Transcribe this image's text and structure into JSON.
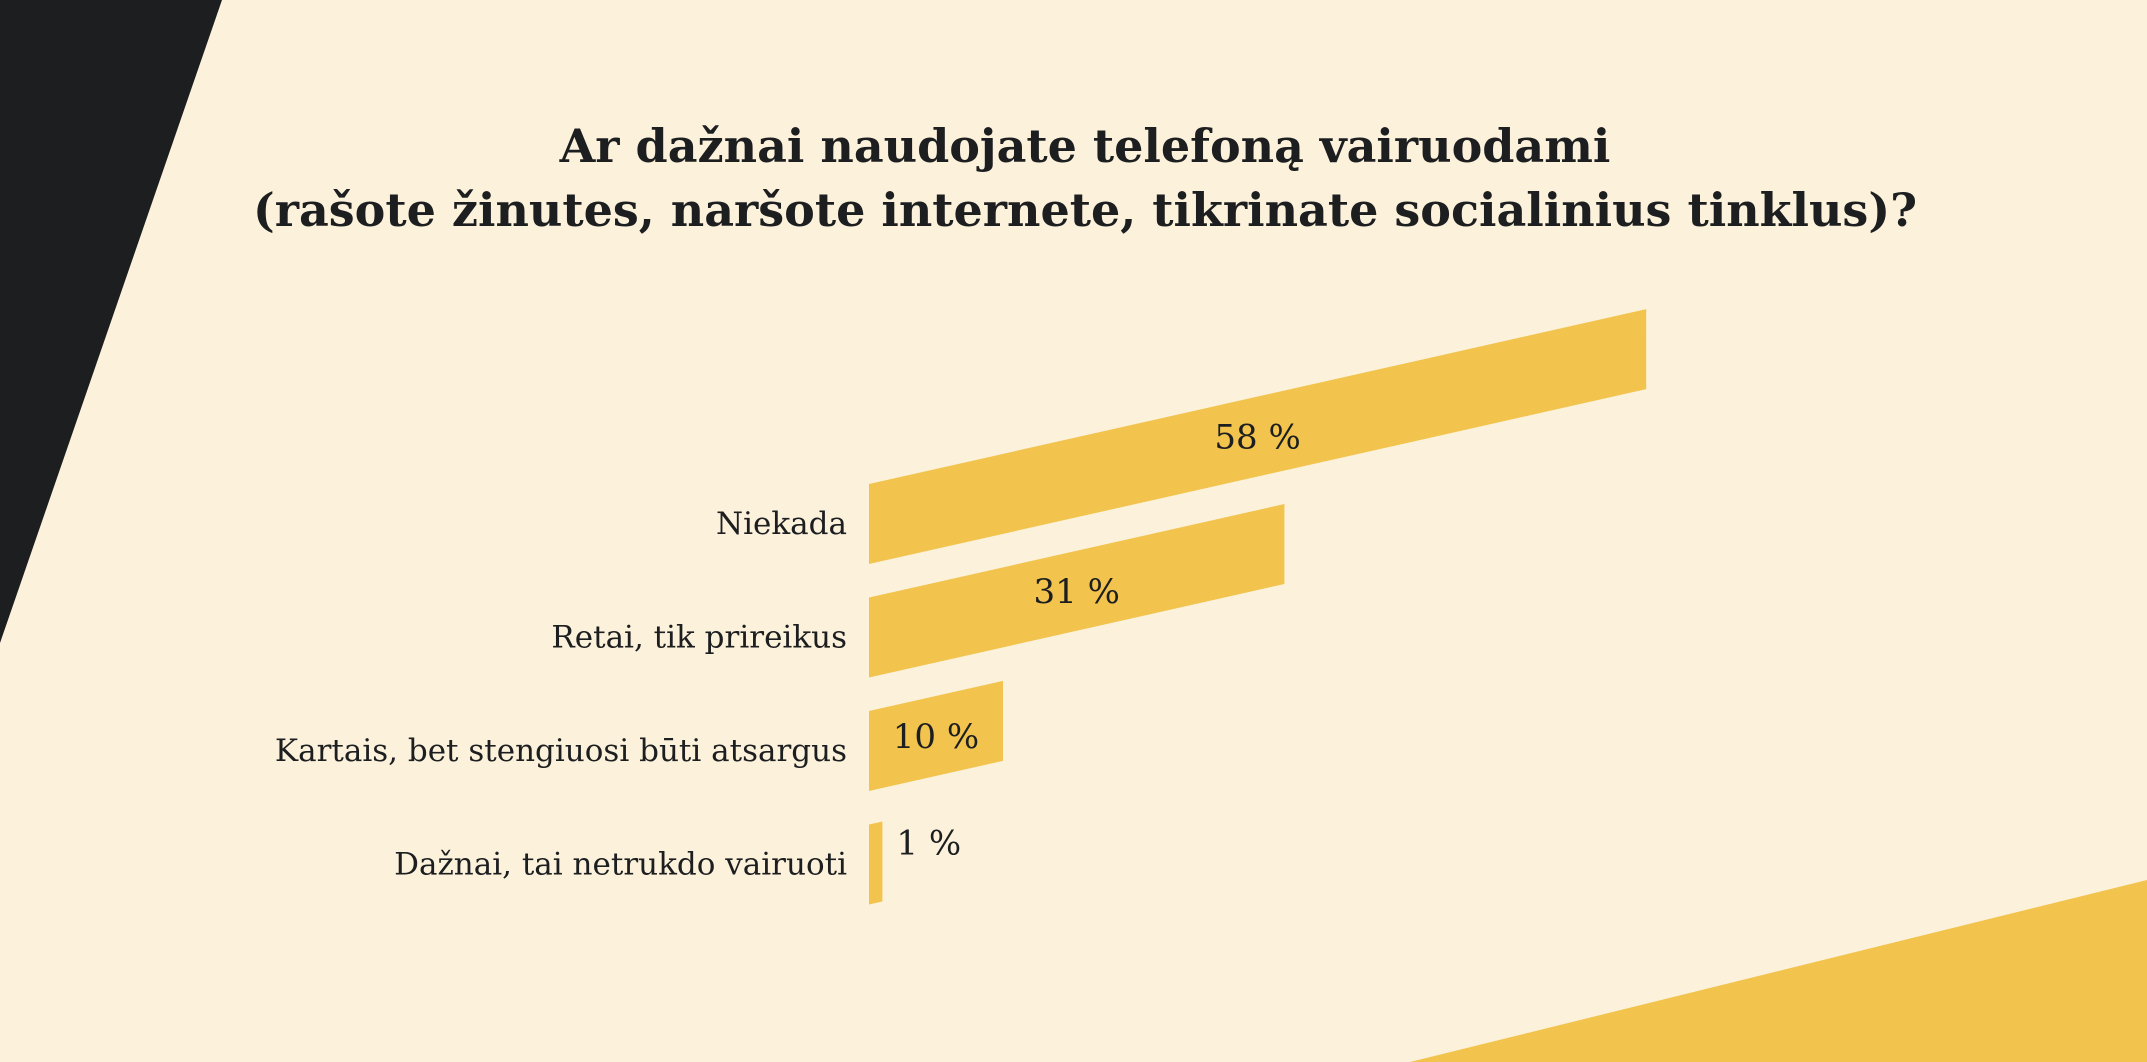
{
  "chart_data": {
    "type": "bar",
    "orientation": "horizontal",
    "title": [
      "Ar dažnai naudojate telefoną vairuodami",
      "(rašote žinutes, naršote internete, tikrinate socialinius tinklus)?"
    ],
    "categories": [
      "Niekada",
      "Retai, tik prireikus",
      "Kartais, bet stengiuosi būti atsargus",
      "Dažnai, tai netrukdo vairuoti"
    ],
    "values": [
      58,
      31,
      10,
      1
    ],
    "value_labels": [
      "58 %",
      "31 %",
      "10 %",
      "1 %"
    ],
    "unit": "%",
    "xlabel": "",
    "ylabel": "",
    "grid": false
  },
  "colors": {
    "background": "#fcf2dc",
    "bar": "#f2c44e",
    "dark": "#1d1e20"
  }
}
